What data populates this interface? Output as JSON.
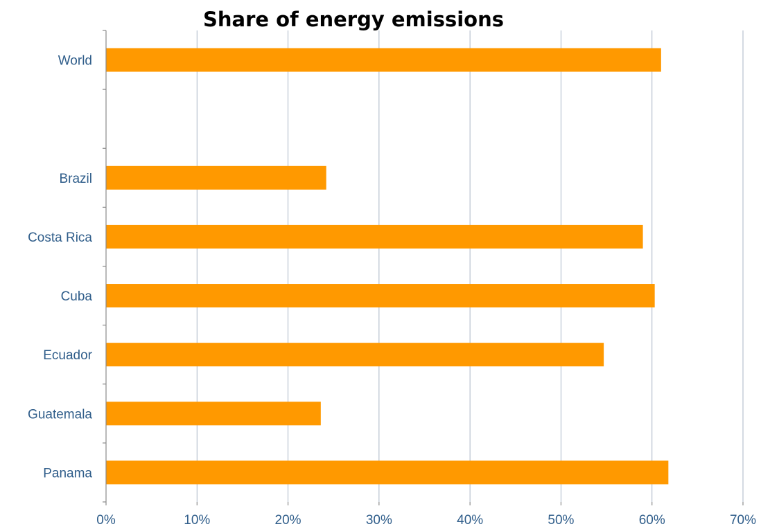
{
  "chart_data": {
    "type": "bar",
    "orientation": "horizontal",
    "title": "Share of energy emissions",
    "xlabel": "",
    "ylabel": "",
    "categories": [
      "World",
      "",
      "Brazil",
      "Costa Rica",
      "Cuba",
      "Ecuador",
      "Guatemala",
      "Panama"
    ],
    "values": [
      61,
      null,
      24.2,
      59,
      60.3,
      54.7,
      23.6,
      61.8
    ],
    "value_format": "percent",
    "xlim": [
      0,
      70
    ],
    "xticks": [
      0,
      10,
      20,
      30,
      40,
      50,
      60,
      70
    ],
    "xtick_labels": [
      "0%",
      "10%",
      "20%",
      "30%",
      "40%",
      "50%",
      "60%",
      "70%"
    ],
    "grid": "vertical",
    "legend": "none",
    "bar_color": "#ff9900",
    "gridline_color": "#a9b5c6",
    "label_color": "#2f5d8a"
  }
}
